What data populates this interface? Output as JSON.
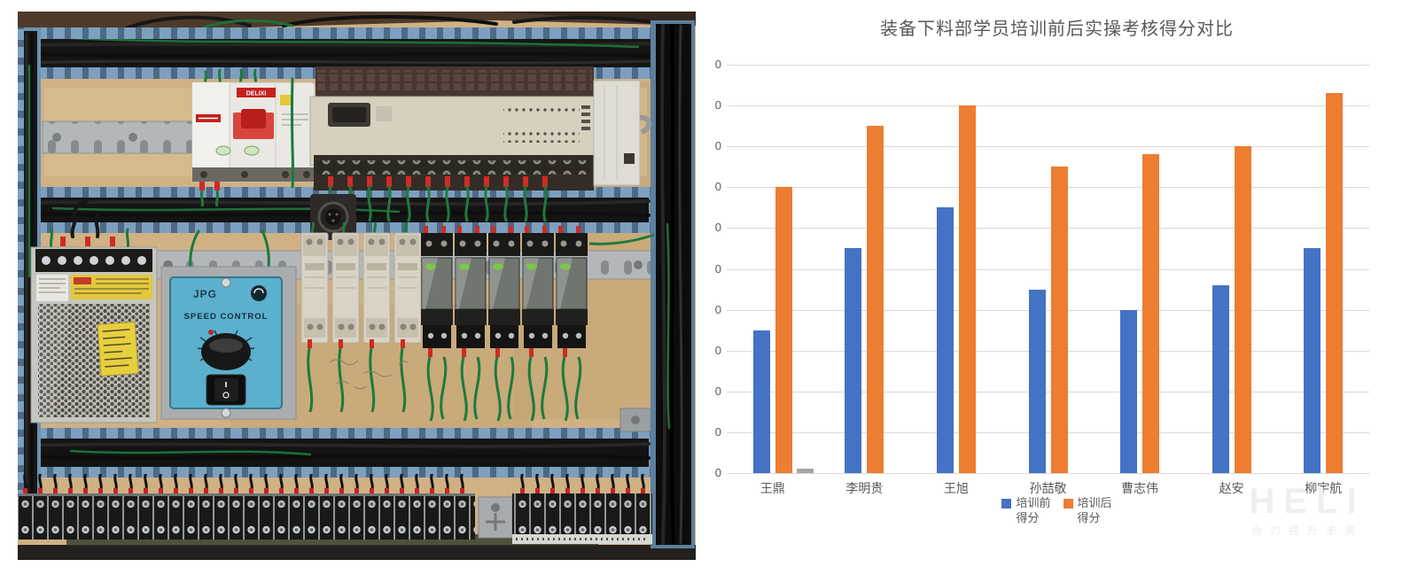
{
  "photo": {
    "labels": {
      "breaker_brand": "DELIXI",
      "controller_brand": "JPG",
      "controller_title": "SPEED CONTROL"
    }
  },
  "chart_data": {
    "type": "bar",
    "title": "装备下料部学员培训前后实操考核得分对比",
    "categories": [
      "王鼎",
      "李明贵",
      "王旭",
      "孙喆敬",
      "曹志伟",
      "赵安",
      "柳宇航"
    ],
    "series": [
      {
        "name": "培训前得分",
        "legend_line1": "培训前",
        "legend_line2": "得分",
        "color": "#4472C4",
        "values": [
          35,
          55,
          65,
          45,
          40,
          46,
          55
        ]
      },
      {
        "name": "培训后得分",
        "legend_line1": "培训后",
        "legend_line2": "得分",
        "color": "#ED7D31",
        "values": [
          70,
          85,
          90,
          75,
          78,
          80,
          93
        ]
      }
    ],
    "extra_bar": {
      "category": "王鼎",
      "value": 1,
      "color": "#A5A5A5"
    },
    "ylim": [
      0,
      100
    ],
    "ytick_step": 10,
    "ytick_labels_visible": [
      "0",
      "0",
      "0",
      "0",
      "0",
      "0",
      "0",
      "0",
      "0",
      "0",
      "0"
    ],
    "grid": true,
    "gridline_color": "#D9D9D9",
    "legend_position": "bottom",
    "text_color": "#595959"
  },
  "watermark": {
    "line1": "HELI",
    "line2": "合力提升未来"
  }
}
